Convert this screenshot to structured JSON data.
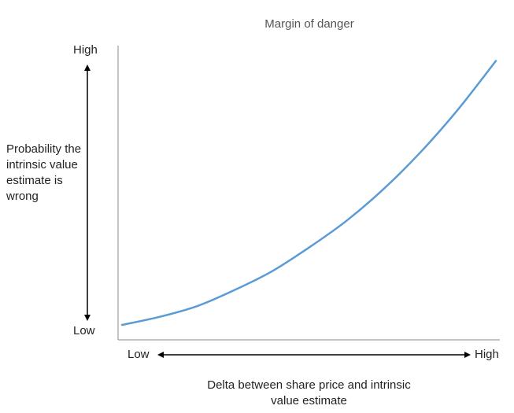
{
  "chart_data": {
    "type": "line",
    "title": "Margin of danger",
    "xlabel": "Delta between share price and intrinsic value estimate",
    "ylabel": "Probability the intrinsic value estimate is wrong",
    "x_tick_labels": [
      "Low",
      "High"
    ],
    "y_tick_labels": [
      "High",
      "Low"
    ],
    "xlim": [
      0,
      1
    ],
    "ylim": [
      0,
      1
    ],
    "grid": false,
    "legend": "none",
    "series": [
      {
        "color": "#5b9bd5",
        "x": [
          0,
          0.1,
          0.2,
          0.3,
          0.4,
          0.5,
          0.6,
          0.7,
          0.8,
          0.9,
          1.0
        ],
        "y": [
          0,
          0.03,
          0.07,
          0.13,
          0.2,
          0.29,
          0.39,
          0.51,
          0.65,
          0.81,
          0.99
        ]
      }
    ]
  }
}
